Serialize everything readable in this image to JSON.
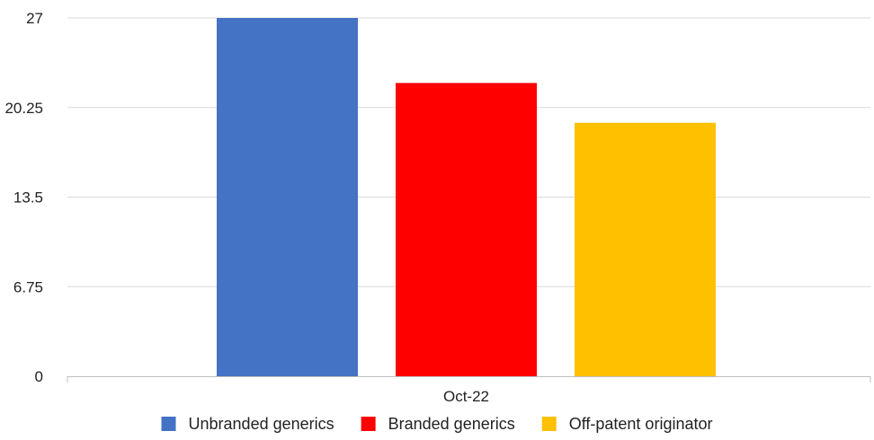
{
  "chart_data": {
    "type": "bar",
    "categories": [
      "Oct-22"
    ],
    "series": [
      {
        "name": "Unbranded generics",
        "values": [
          27
        ],
        "color": "#4472C4"
      },
      {
        "name": "Branded generics",
        "values": [
          22.1
        ],
        "color": "#FF0000"
      },
      {
        "name": "Off-patent originator",
        "values": [
          19.1
        ],
        "color": "#FFC000"
      }
    ],
    "yticks": [
      "0",
      "6.75",
      "13.5",
      "20.25",
      "27"
    ],
    "ylim": [
      0,
      27
    ],
    "grid": true,
    "legend": "bottom"
  },
  "colors": {
    "gridline": "#d9d9d9",
    "axis": "#bfbfbf"
  }
}
